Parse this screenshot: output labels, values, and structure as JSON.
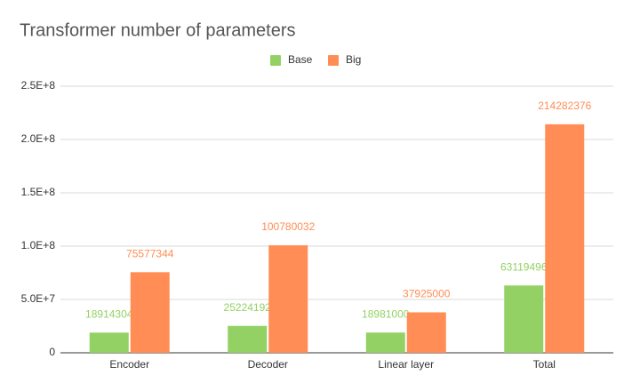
{
  "chart_data": {
    "type": "bar",
    "title": "Transformer number of parameters",
    "categories": [
      "Encoder",
      "Decoder",
      "Linear layer",
      "Total"
    ],
    "series": [
      {
        "name": "Base",
        "color": "#93d164",
        "values": [
          18914304,
          25224192,
          18981000,
          63119496
        ]
      },
      {
        "name": "Big",
        "color": "#ff8d55",
        "values": [
          75577344,
          100780032,
          37925000,
          214282376
        ]
      }
    ],
    "ylim": [
      0,
      250000000
    ],
    "yticks": [
      0,
      {
        "value": 50000000,
        "label": "5.0E+7"
      },
      {
        "value": 100000000,
        "label": "1.0E+8"
      },
      {
        "value": 150000000,
        "label": "1.5E+8"
      },
      {
        "value": 200000000,
        "label": "2.0E+8"
      },
      {
        "value": 250000000,
        "label": "2.5E+8"
      }
    ],
    "grid": true,
    "legend": "top"
  }
}
